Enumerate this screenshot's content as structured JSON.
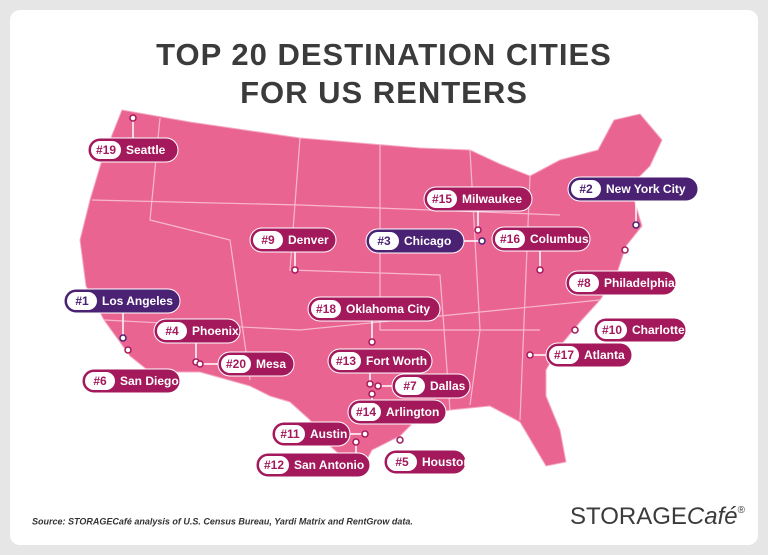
{
  "title": [
    "TOP 20 DESTINATION CITIES",
    "FOR US RENTERS"
  ],
  "cities": [
    {
      "rank": "#19",
      "name": "Seattle",
      "color": "#a3195b"
    },
    {
      "rank": "#2",
      "name": "New York City",
      "color": "#4a2173"
    },
    {
      "rank": "#15",
      "name": "Milwaukee",
      "color": "#a3195b"
    },
    {
      "rank": "#9",
      "name": "Denver",
      "color": "#a3195b"
    },
    {
      "rank": "#3",
      "name": "Chicago",
      "color": "#4a2173"
    },
    {
      "rank": "#16",
      "name": "Columbus",
      "color": "#a3195b"
    },
    {
      "rank": "#8",
      "name": "Philadelphia",
      "color": "#a3195b"
    },
    {
      "rank": "#1",
      "name": "Los Angeles",
      "color": "#4a2173"
    },
    {
      "rank": "#18",
      "name": "Oklahoma City",
      "color": "#a3195b"
    },
    {
      "rank": "#4",
      "name": "Phoenix",
      "color": "#a3195b"
    },
    {
      "rank": "#10",
      "name": "Charlotte",
      "color": "#a3195b"
    },
    {
      "rank": "#13",
      "name": "Fort Worth",
      "color": "#a3195b"
    },
    {
      "rank": "#20",
      "name": "Mesa",
      "color": "#a3195b"
    },
    {
      "rank": "#17",
      "name": "Atlanta",
      "color": "#a3195b"
    },
    {
      "rank": "#6",
      "name": "San Diego",
      "color": "#a3195b"
    },
    {
      "rank": "#7",
      "name": "Dallas",
      "color": "#a3195b"
    },
    {
      "rank": "#14",
      "name": "Arlington",
      "color": "#a3195b"
    },
    {
      "rank": "#11",
      "name": "Austin",
      "color": "#a3195b"
    },
    {
      "rank": "#5",
      "name": "Houston",
      "color": "#a3195b"
    },
    {
      "rank": "#12",
      "name": "San Antonio",
      "color": "#a3195b"
    }
  ],
  "source": "Source: STORAGECafé analysis of U.S. Census Bureau, Yardi Matrix and RentGrow data.",
  "logo": {
    "main": "STORAGE",
    "accent": "Café",
    "mark": "®"
  }
}
